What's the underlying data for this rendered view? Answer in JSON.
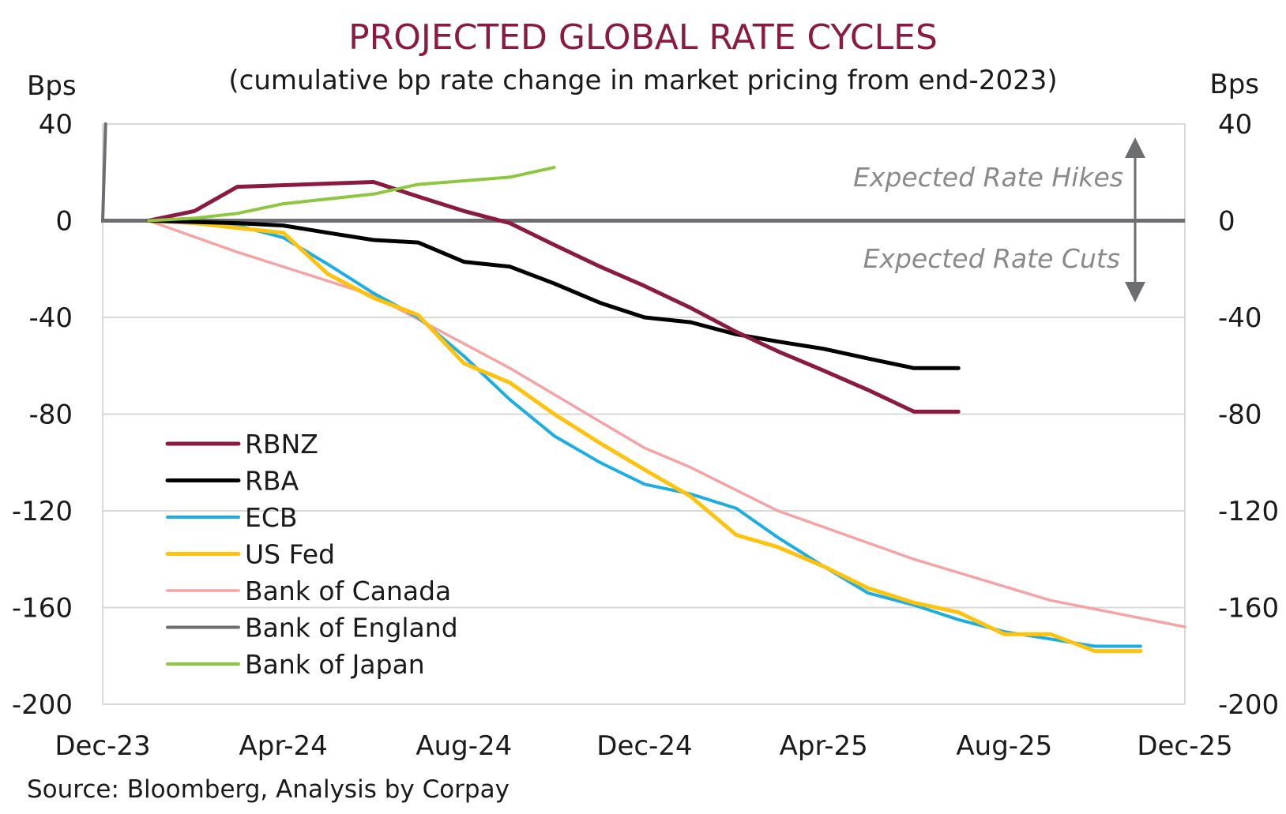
{
  "chart_data": {
    "type": "line",
    "title": "PROJECTED GLOBAL RATE CYCLES",
    "subtitle": "(cumulative bp rate change in market pricing from end-2023)",
    "ylabel_left": "Bps",
    "ylabel_right": "Bps",
    "ylim": [
      -200,
      40
    ],
    "yticks": [
      40,
      0,
      -40,
      -80,
      -120,
      -160,
      -200
    ],
    "xlim": [
      "Dec-23",
      "Dec-25"
    ],
    "xticks": [
      "Dec-23",
      "Apr-24",
      "Aug-24",
      "Dec-24",
      "Apr-25",
      "Aug-25",
      "Dec-25"
    ],
    "grid": true,
    "legend_position": "bottom-left",
    "annotations": {
      "hikes": "Expected Rate Hikes",
      "cuts": "Expected Rate Cuts"
    },
    "source": "Source: Bloomberg, Analysis by Corpay",
    "series": [
      {
        "name": "RBNZ",
        "color": "#8B1A42",
        "x": [
          "2024-01-01",
          "2024-02-01",
          "2024-03-01",
          "2024-06-01",
          "2024-07-01",
          "2024-08-01",
          "2024-09-01",
          "2024-10-01",
          "2024-11-01",
          "2024-12-01",
          "2025-01-01",
          "2025-02-01",
          "2025-03-01",
          "2025-04-01",
          "2025-05-01",
          "2025-06-01",
          "2025-07-01"
        ],
        "y": [
          0,
          4,
          14,
          16,
          10,
          4,
          -1,
          -10,
          -19,
          -27,
          -36,
          -46,
          -54,
          -62,
          -70,
          -79,
          -79
        ]
      },
      {
        "name": "RBA",
        "color": "#000000",
        "x": [
          "2024-01-01",
          "2024-03-01",
          "2024-04-01",
          "2024-05-01",
          "2024-06-01",
          "2024-07-01",
          "2024-08-01",
          "2024-09-01",
          "2024-10-01",
          "2024-11-01",
          "2024-12-01",
          "2025-01-01",
          "2025-02-01",
          "2025-03-01",
          "2025-04-01",
          "2025-05-01",
          "2025-06-01",
          "2025-07-01"
        ],
        "y": [
          0,
          -1,
          -2,
          -5,
          -8,
          -9,
          -17,
          -19,
          -26,
          -34,
          -40,
          -42,
          -47,
          -50,
          -53,
          -57,
          -61,
          -61
        ]
      },
      {
        "name": "ECB",
        "color": "#1CAEE3",
        "x": [
          "2024-01-01",
          "2024-02-01",
          "2024-03-01",
          "2024-04-01",
          "2024-05-01",
          "2024-06-01",
          "2024-07-01",
          "2024-08-01",
          "2024-09-01",
          "2024-10-01",
          "2024-11-01",
          "2024-12-01",
          "2025-01-01",
          "2025-02-01",
          "2025-03-01",
          "2025-04-01",
          "2025-05-01",
          "2025-06-01",
          "2025-07-01",
          "2025-08-01",
          "2025-09-01",
          "2025-10-01",
          "2025-11-01"
        ],
        "y": [
          0,
          -1,
          -2,
          -7,
          -18,
          -30,
          -40,
          -56,
          -74,
          -89,
          -100,
          -109,
          -113,
          -119,
          -131,
          -143,
          -154,
          -159,
          -165,
          -170,
          -173,
          -176,
          -176
        ]
      },
      {
        "name": "US Fed",
        "color": "#FFC20E",
        "x": [
          "2024-01-01",
          "2024-02-01",
          "2024-03-01",
          "2024-04-01",
          "2024-05-01",
          "2024-06-01",
          "2024-07-01",
          "2024-08-01",
          "2024-09-01",
          "2024-10-01",
          "2024-11-01",
          "2024-12-01",
          "2025-01-01",
          "2025-02-01",
          "2025-03-01",
          "2025-04-01",
          "2025-05-01",
          "2025-06-01",
          "2025-07-01",
          "2025-08-01",
          "2025-09-01",
          "2025-10-01",
          "2025-11-01"
        ],
        "y": [
          0,
          -1,
          -3,
          -5,
          -22,
          -32,
          -39,
          -59,
          -67,
          -80,
          -92,
          -103,
          -114,
          -130,
          -135,
          -143,
          -152,
          -158,
          -162,
          -171,
          -171,
          -178,
          -178
        ]
      },
      {
        "name": "Bank of Canada",
        "color": "#F4A4A4",
        "x": [
          "2024-01-01",
          "2024-03-01",
          "2024-06-01",
          "2024-09-01",
          "2024-12-01",
          "2025-01-01",
          "2025-03-01",
          "2025-06-01",
          "2025-09-01",
          "2025-12-01"
        ],
        "y": [
          0,
          -13,
          -31,
          -61,
          -94,
          -102,
          -120,
          -140,
          -157,
          -168
        ]
      },
      {
        "name": "Bank of England",
        "color": "#6D6E71",
        "x": [
          "2023-12-01",
          "2023-12-03"
        ],
        "y": [
          0,
          40
        ]
      },
      {
        "name": "Bank of Japan",
        "color": "#8DC63F",
        "x": [
          "2024-01-01",
          "2024-02-01",
          "2024-03-01",
          "2024-04-01",
          "2024-06-01",
          "2024-07-01",
          "2024-09-01",
          "2024-10-01"
        ],
        "y": [
          0,
          1,
          3,
          7,
          11,
          15,
          18,
          22
        ]
      }
    ]
  }
}
